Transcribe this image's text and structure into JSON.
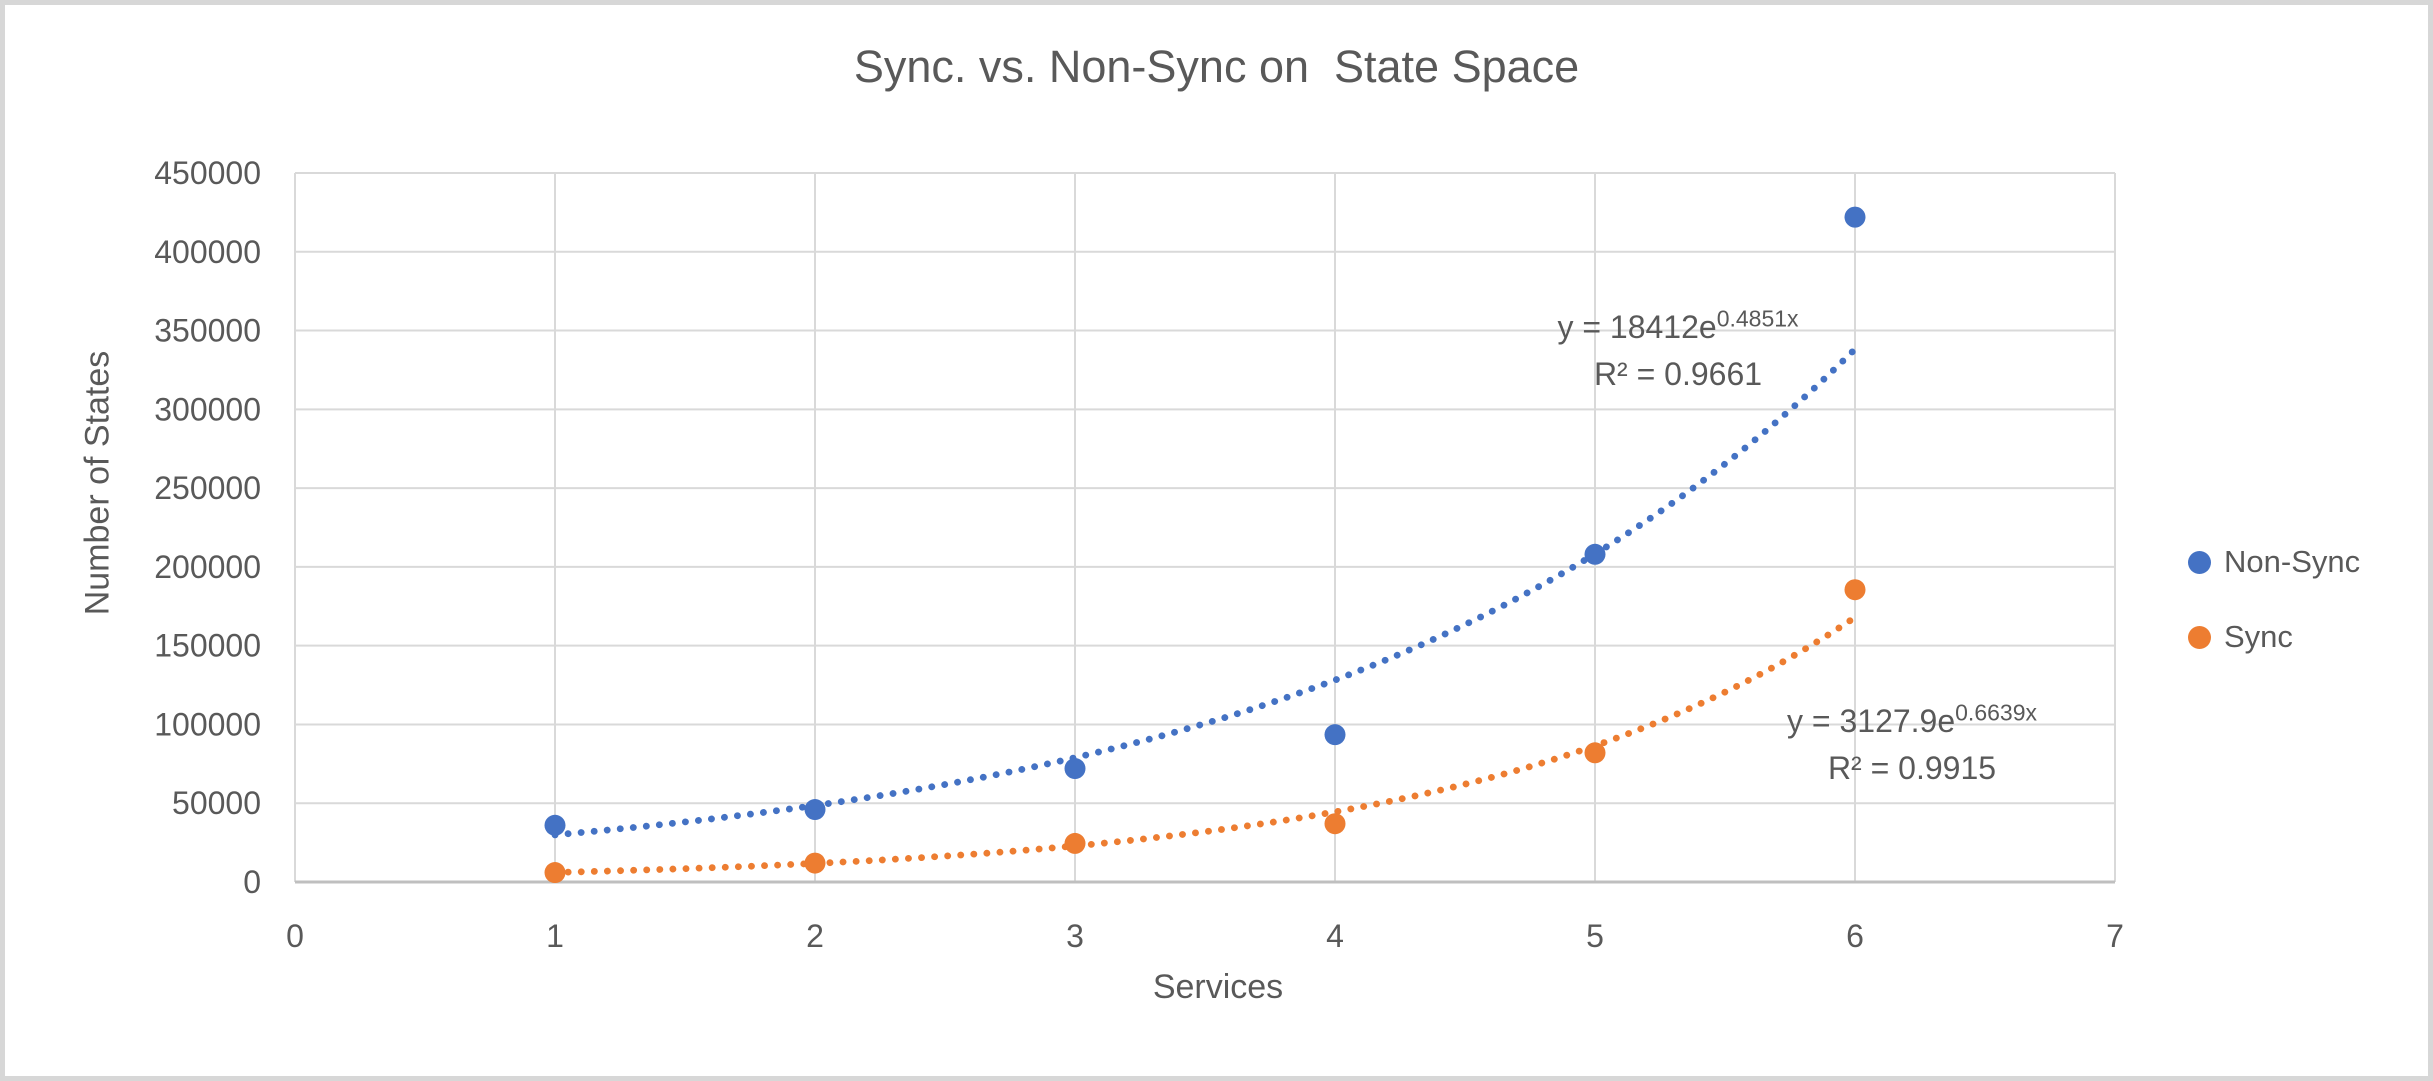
{
  "frame": {
    "background": "#ffffff",
    "border_color": "#d7d7d7"
  },
  "chart_data": {
    "type": "scatter",
    "title": "Sync. vs. Non-Sync on  State Space",
    "xlabel": "Services",
    "ylabel": "Number of States",
    "xlim": [
      0,
      7
    ],
    "ylim": [
      0,
      450000
    ],
    "x_ticks": [
      0,
      1,
      2,
      3,
      4,
      5,
      6,
      7
    ],
    "y_ticks": [
      0,
      50000,
      100000,
      150000,
      200000,
      250000,
      300000,
      350000,
      400000,
      450000
    ],
    "grid": true,
    "legend_position": "right-middle",
    "colors": {
      "gridline": "#d9d9d9",
      "axis_line": "#bfbfbf",
      "text": "#595959"
    },
    "series": [
      {
        "name": "Non-Sync",
        "color": "#4472c4",
        "x": [
          1,
          2,
          3,
          4,
          5,
          6
        ],
        "y": [
          36000,
          46000,
          72000,
          93500,
          208000,
          422000
        ],
        "trendline": {
          "type": "exponential",
          "coef_a": 18412,
          "coef_b": 0.4851,
          "x_range": [
            1,
            6
          ],
          "equation_prefix": "y = 18412e",
          "equation_exponent": "0.4851x",
          "r2": "R² = 0.9661"
        }
      },
      {
        "name": "Sync",
        "color": "#ed7d31",
        "x": [
          1,
          2,
          3,
          4,
          5,
          6
        ],
        "y": [
          6000,
          12000,
          24500,
          37000,
          82000,
          185500
        ],
        "trendline": {
          "type": "exponential",
          "coef_a": 3127.9,
          "coef_b": 0.6639,
          "x_range": [
            1,
            6
          ],
          "equation_prefix": "y = 3127.9e",
          "equation_exponent": "0.6639x",
          "r2": "R² = 0.9915"
        }
      }
    ]
  }
}
